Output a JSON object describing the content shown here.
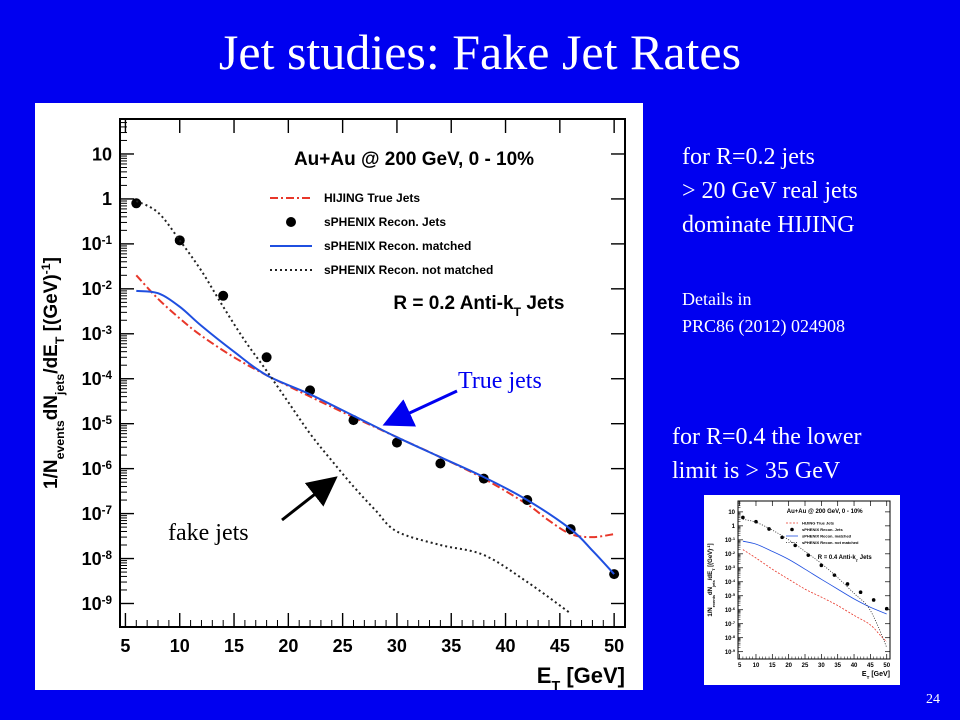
{
  "slide": {
    "title": "Jet studies: Fake Jet Rates",
    "page_number": "24",
    "notes": {
      "r02_line1": "for R=0.2 jets",
      "r02_line2": "> 20 GeV real jets",
      "r02_line3": "dominate HIJING",
      "details_line1": "Details in",
      "details_line2": "PRC86 (2012)  024908",
      "r04_line1": "for R=0.4 the lower",
      "r04_line2": "limit is > 35 GeV"
    },
    "annotations": {
      "true_jets": "True jets",
      "fake_jets": "fake jets"
    }
  },
  "colors": {
    "background": "#0000f0",
    "hijing": "#e8372a",
    "matched": "#1f4fe0",
    "not_matched": "#222222",
    "recon": "#000000"
  },
  "chart_data": [
    {
      "type": "line",
      "title": "Au+Au @ 200 GeV, 0 - 10%",
      "subtitle": "R = 0.2 Anti-kT Jets",
      "xlabel": "ET [GeV]",
      "ylabel": "1/Nevents dNjets/dET [(GeV)-1]",
      "xlim": [
        4.5,
        51
      ],
      "ylim": [
        3e-10,
        60
      ],
      "yscale": "log",
      "x_ticks": [
        5,
        10,
        15,
        20,
        25,
        30,
        35,
        40,
        45,
        50
      ],
      "y_ticks": [
        1e-09,
        1e-08,
        1e-07,
        1e-06,
        1e-05,
        0.0001,
        0.001,
        0.01,
        0.1,
        1,
        10
      ],
      "y_tick_labels": [
        "10-9",
        "10-8",
        "10-7",
        "10-6",
        "10-5",
        "10-4",
        "10-3",
        "10-2",
        "10-1",
        "1",
        "10"
      ],
      "legend_position": "top-right",
      "series": [
        {
          "name": "HIJING True Jets",
          "style": "dash-dot",
          "x": [
            6,
            8,
            10,
            12,
            15,
            18,
            22,
            26,
            30,
            34,
            38,
            42,
            44,
            46,
            48,
            50
          ],
          "y": [
            0.02,
            0.006,
            0.0022,
            0.0009,
            0.0003,
            0.00012,
            4e-05,
            1.4e-05,
            5e-06,
            1.8e-06,
            6e-07,
            1.6e-07,
            7e-08,
            3.5e-08,
            3e-08,
            3.5e-08
          ]
        },
        {
          "name": "sPHENIX Recon. Jets",
          "style": "points",
          "x": [
            6,
            10,
            14,
            18,
            22,
            26,
            30,
            34,
            38,
            42,
            46,
            50
          ],
          "y": [
            0.8,
            0.12,
            0.007,
            0.0003,
            5.5e-05,
            1.2e-05,
            3.8e-06,
            1.3e-06,
            6e-07,
            2e-07,
            4.5e-08,
            4.5e-09
          ]
        },
        {
          "name": "sPHENIX Recon. matched",
          "style": "solid",
          "x": [
            6,
            8,
            10,
            12,
            15,
            18,
            22,
            26,
            30,
            34,
            38,
            42,
            46,
            48,
            50
          ],
          "y": [
            0.009,
            0.008,
            0.004,
            0.0015,
            0.0004,
            0.00012,
            4.5e-05,
            1.5e-05,
            5e-06,
            1.8e-06,
            6.5e-07,
            2e-07,
            4.5e-08,
            1.5e-08,
            4.5e-09
          ]
        },
        {
          "name": "sPHENIX Recon. not matched",
          "style": "dotted",
          "x": [
            6,
            8,
            10,
            12,
            14,
            16,
            18,
            20,
            22,
            24,
            26,
            28,
            30,
            34,
            38,
            42,
            46
          ],
          "y": [
            0.9,
            0.5,
            0.12,
            0.025,
            0.004,
            0.0007,
            0.00015,
            3e-05,
            6e-06,
            1.5e-06,
            4e-07,
            1.2e-07,
            4e-08,
            2e-08,
            1.2e-08,
            3e-09,
            6e-10
          ]
        }
      ]
    },
    {
      "type": "line",
      "title": "Au+Au @ 200 GeV, 0 - 10%",
      "subtitle": "R = 0.4 Anti-kT Jets",
      "xlabel": "ET [GeV]",
      "ylabel": "1/Nevents dNjets/dET [(GeV)-1]",
      "xlim": [
        4.5,
        51
      ],
      "ylim": [
        3e-10,
        60
      ],
      "yscale": "log",
      "x_ticks": [
        5,
        10,
        15,
        20,
        25,
        30,
        35,
        40,
        45,
        50
      ],
      "y_ticks": [
        1e-09,
        1e-08,
        1e-07,
        1e-06,
        1e-05,
        0.0001,
        0.001,
        0.01,
        0.1,
        1,
        10
      ],
      "y_tick_labels": [
        "10-9",
        "10-8",
        "10-7",
        "10-6",
        "10-5",
        "10-4",
        "10-3",
        "10-2",
        "10-1",
        "1",
        "10"
      ],
      "legend_position": "top-right",
      "series": [
        {
          "name": "HIJING True Jets",
          "style": "dashed",
          "x": [
            6,
            10,
            15,
            20,
            25,
            30,
            35,
            40,
            44,
            46,
            48,
            50
          ],
          "y": [
            0.02,
            0.005,
            0.0008,
            0.00015,
            3e-05,
            8e-06,
            2e-06,
            4e-07,
            1.2e-07,
            5e-08,
            1.5e-08,
            5e-09
          ]
        },
        {
          "name": "sPHENIX Recon. Jets",
          "style": "points",
          "x": [
            6,
            10,
            14,
            18,
            22,
            26,
            30,
            34,
            38,
            42,
            46,
            50
          ],
          "y": [
            4,
            2,
            0.6,
            0.15,
            0.04,
            0.008,
            0.0015,
            0.0003,
            7e-05,
            1.8e-05,
            5e-06,
            1.2e-06
          ]
        },
        {
          "name": "sPHENIX Recon. matched",
          "style": "solid",
          "x": [
            6,
            10,
            15,
            20,
            25,
            30,
            35,
            40,
            45,
            50
          ],
          "y": [
            0.08,
            0.05,
            0.015,
            0.004,
            0.0008,
            0.00015,
            3e-05,
            6e-06,
            1.5e-06,
            5e-07
          ]
        },
        {
          "name": "sPHENIX Recon. not matched",
          "style": "dotted",
          "x": [
            6,
            10,
            15,
            20,
            25,
            30,
            35,
            40,
            44,
            47,
            50
          ],
          "y": [
            3,
            1.8,
            0.5,
            0.1,
            0.015,
            0.002,
            0.0002,
            1.5e-05,
            2e-06,
            1e-07,
            2e-09
          ]
        }
      ]
    }
  ]
}
